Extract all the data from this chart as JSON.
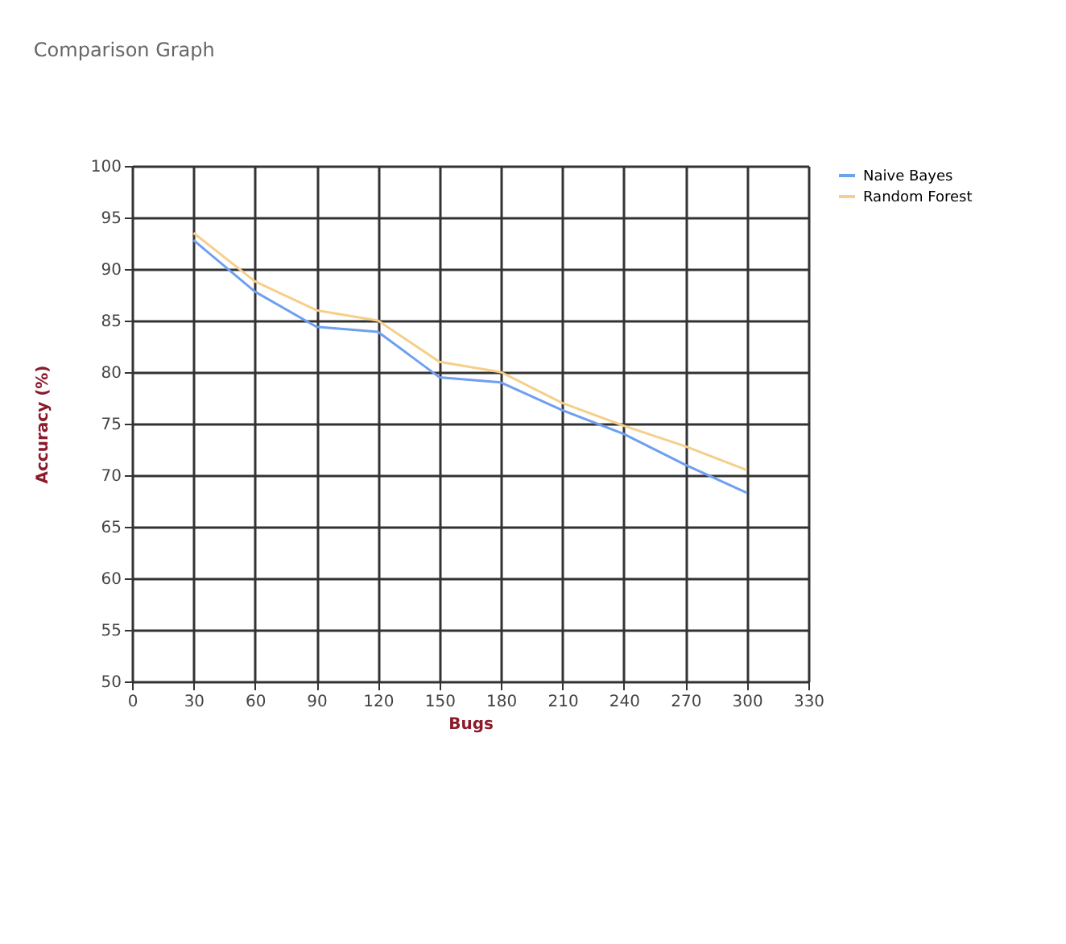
{
  "chart_data": {
    "type": "line",
    "title": "Comparison Graph",
    "xlabel": "Bugs",
    "ylabel": "Accuracy (%)",
    "x": [
      30,
      60,
      90,
      120,
      150,
      180,
      210,
      240,
      270,
      300
    ],
    "series": [
      {
        "name": "Naive Bayes",
        "color": "#6f9ff0",
        "values": [
          92.8,
          87.8,
          84.4,
          83.9,
          79.5,
          79.0,
          76.3,
          74.0,
          71.0,
          68.3
        ]
      },
      {
        "name": "Random Forest",
        "color": "#f5cf8a",
        "values": [
          93.5,
          88.8,
          86.0,
          85.0,
          81.0,
          80.0,
          77.0,
          74.8,
          72.8,
          70.5
        ]
      }
    ],
    "xlim": [
      0,
      330
    ],
    "xticks": [
      0,
      30,
      60,
      90,
      120,
      150,
      180,
      210,
      240,
      270,
      300,
      330
    ],
    "ylim": [
      50,
      100
    ],
    "yticks": [
      50,
      55,
      60,
      65,
      70,
      75,
      80,
      85,
      90,
      95,
      100
    ],
    "grid": true,
    "legend": "top right",
    "marker": "none",
    "line_style": "solid"
  }
}
